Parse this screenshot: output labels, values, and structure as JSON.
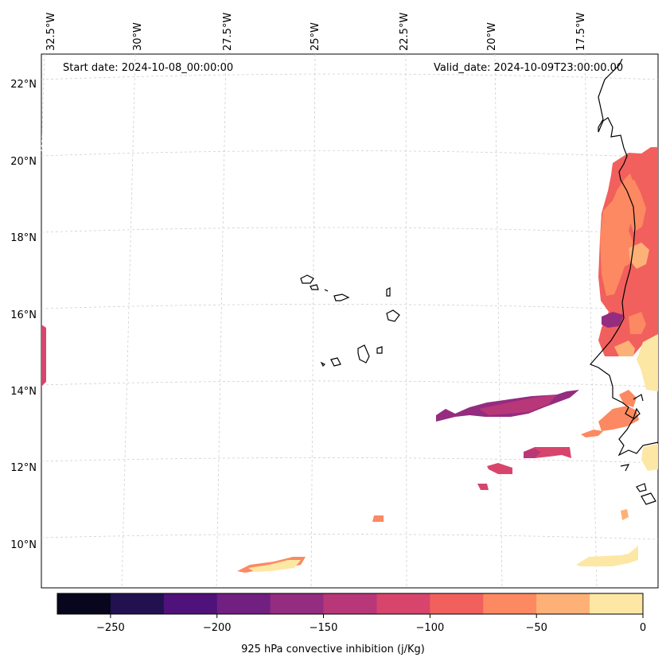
{
  "header": {
    "start_date": "Start date: 2024-10-08_00:00:00",
    "valid_date": "Valid_date: 2024-10-09T23:00:00.00"
  },
  "map": {
    "lon_labels": [
      "32.5°W",
      "30°W",
      "27.5°W",
      "25°W",
      "22.5°W",
      "20°W",
      "17.5°W"
    ],
    "lat_labels": [
      "22°N",
      "20°N",
      "18°N",
      "16°N",
      "14°N",
      "12°N",
      "10°N"
    ],
    "gridlines": true
  },
  "colorbar": {
    "title": "925 hPa convective inhibition (j/Kg)",
    "ticks": [
      "−250",
      "−200",
      "−150",
      "−100",
      "−50",
      "0"
    ],
    "bins": [
      {
        "range": [
          -275,
          -250
        ],
        "color": "#07061c"
      },
      {
        "range": [
          -250,
          -225
        ],
        "color": "#221150"
      },
      {
        "range": [
          -225,
          -200
        ],
        "color": "#4f127b"
      },
      {
        "range": [
          -200,
          -175
        ],
        "color": "#711f81"
      },
      {
        "range": [
          -175,
          -150
        ],
        "color": "#942c80"
      },
      {
        "range": [
          -150,
          -125
        ],
        "color": "#b73779"
      },
      {
        "range": [
          -125,
          -100
        ],
        "color": "#d8456c"
      },
      {
        "range": [
          -100,
          -75
        ],
        "color": "#f1605d"
      },
      {
        "range": [
          -75,
          -50
        ],
        "color": "#fc8961"
      },
      {
        "range": [
          -50,
          -25
        ],
        "color": "#feb177"
      },
      {
        "range": [
          -25,
          0
        ],
        "color": "#fde7a4"
      }
    ]
  }
}
